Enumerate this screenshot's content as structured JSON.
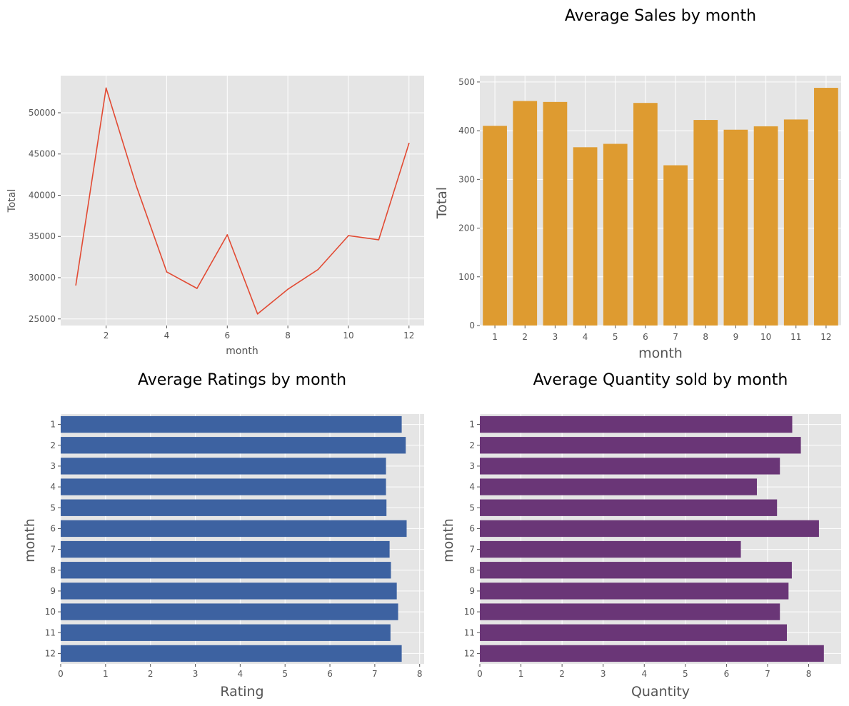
{
  "chart_data": [
    {
      "type": "line",
      "title": "",
      "xlabel": "month",
      "ylabel": "Total",
      "x": [
        1,
        2,
        3,
        4,
        5,
        6,
        7,
        8,
        9,
        10,
        11,
        12
      ],
      "values": [
        29100,
        53000,
        41100,
        30700,
        28700,
        35200,
        25600,
        28600,
        31000,
        35100,
        34600,
        46300
      ],
      "xticks": [
        "2",
        "4",
        "6",
        "8",
        "10",
        "12"
      ],
      "yticks": [
        "25000",
        "30000",
        "35000",
        "40000",
        "45000",
        "50000"
      ],
      "xlim": [
        0.5,
        12.5
      ],
      "ylim": [
        24200,
        54500
      ],
      "grid": true,
      "color": "#e24a33"
    },
    {
      "type": "bar",
      "title": "Average Sales by month",
      "xlabel": "month",
      "ylabel": "Total",
      "categories": [
        "1",
        "2",
        "3",
        "4",
        "5",
        "6",
        "7",
        "8",
        "9",
        "10",
        "11",
        "12"
      ],
      "values": [
        410,
        461,
        459,
        366,
        373,
        457,
        329,
        422,
        402,
        409,
        423,
        488
      ],
      "yticks": [
        "0",
        "100",
        "200",
        "300",
        "400",
        "500"
      ],
      "ylim": [
        0,
        513
      ],
      "grid": true,
      "color": "#de9b30"
    },
    {
      "type": "bar",
      "orientation": "horizontal",
      "title": "Average Ratings by month",
      "xlabel": "Rating",
      "ylabel": "month",
      "categories": [
        "1",
        "2",
        "3",
        "4",
        "5",
        "6",
        "7",
        "8",
        "9",
        "10",
        "11",
        "12"
      ],
      "values": [
        7.6,
        7.69,
        7.25,
        7.25,
        7.26,
        7.71,
        7.33,
        7.36,
        7.49,
        7.52,
        7.35,
        7.6
      ],
      "xticks": [
        "0",
        "1",
        "2",
        "3",
        "4",
        "5",
        "6",
        "7",
        "8"
      ],
      "xlim": [
        0,
        8.1
      ],
      "grid": true,
      "color": "#3d62a1"
    },
    {
      "type": "bar",
      "orientation": "horizontal",
      "title": "Average Quantity sold by month",
      "xlabel": "Quantity",
      "ylabel": "month",
      "categories": [
        "1",
        "2",
        "3",
        "4",
        "5",
        "6",
        "7",
        "8",
        "9",
        "10",
        "11",
        "12"
      ],
      "values": [
        7.6,
        7.81,
        7.3,
        6.74,
        7.23,
        8.25,
        6.35,
        7.59,
        7.51,
        7.3,
        7.47,
        8.37
      ],
      "xticks": [
        "0",
        "1",
        "2",
        "3",
        "4",
        "5",
        "6",
        "7",
        "8"
      ],
      "xlim": [
        0,
        8.79
      ],
      "grid": true,
      "color": "#6a3677"
    }
  ]
}
